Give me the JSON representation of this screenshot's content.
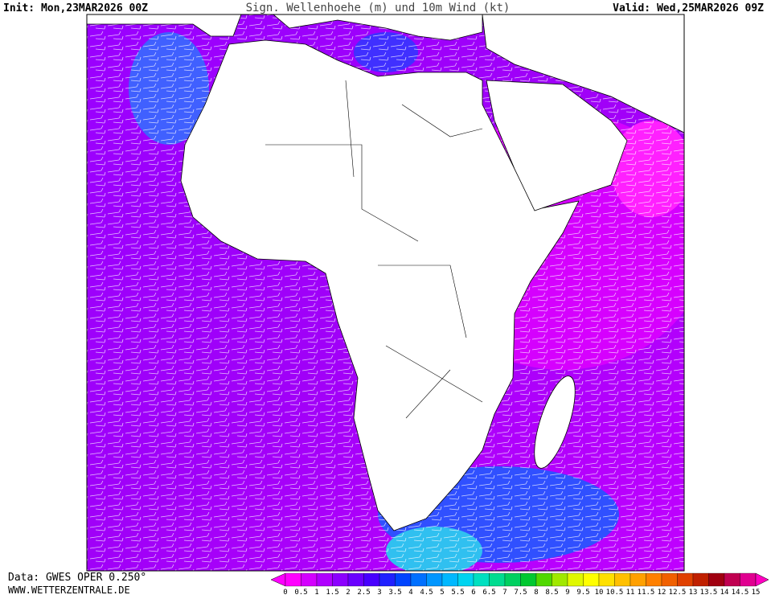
{
  "header": {
    "init": "Init: Mon,23MAR2026 00Z",
    "title": "Sign. Wellenhoehe (m) und 10m Wind (kt)",
    "valid": "Valid: Wed,25MAR2026 09Z"
  },
  "footer": {
    "data": "Data: GWES OPER 0.250°",
    "website": "WWW.WETTERZENTRALE.DE"
  },
  "colorbar": {
    "labels": [
      "0",
      "0.5",
      "1",
      "1.5",
      "2",
      "2.5",
      "3",
      "3.5",
      "4",
      "4.5",
      "5",
      "5.5",
      "6",
      "6.5",
      "7",
      "7.5",
      "8",
      "8.5",
      "9",
      "9.5",
      "10",
      "10.5",
      "11",
      "11.5",
      "12",
      "12.5",
      "13",
      "13.5",
      "14",
      "14.5",
      "15"
    ],
    "colors": [
      "#ff00ff",
      "#d400ff",
      "#b000ff",
      "#8c00ff",
      "#6a00ff",
      "#4800ff",
      "#2020ff",
      "#0044ff",
      "#0070ff",
      "#0096ff",
      "#00b8ff",
      "#00d4f0",
      "#00e0c0",
      "#00dc90",
      "#00d060",
      "#00c830",
      "#50d800",
      "#a0e800",
      "#e0f800",
      "#ffff00",
      "#ffe000",
      "#ffc000",
      "#ffa000",
      "#ff8000",
      "#f06000",
      "#e04000",
      "#c02000",
      "#a00010",
      "#c00050",
      "#e00090"
    ],
    "arrow_colors": [
      "#ff00ff",
      "#ff00c0"
    ]
  }
}
